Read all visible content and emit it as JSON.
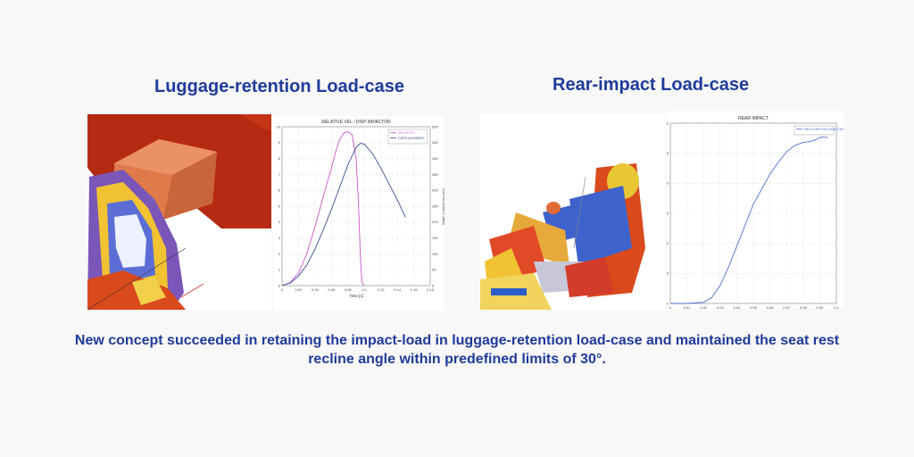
{
  "headings": {
    "left": "Luggage-retention Load-case",
    "right": "Rear-impact Load-case"
  },
  "caption": "New concept succeeded in retaining the impact-load in luggage-retention load-case and maintained the seat rest recline angle within predefined limits of 30°.",
  "colors": {
    "heading": "#1f3a9a",
    "velocity": "#cc55c8",
    "displacement": "#3a4e96",
    "recliner": "#4f6fd0",
    "box": "#e07a4a",
    "wall": "#b52a12"
  },
  "chart_data": [
    {
      "type": "line",
      "title": "RELATIVE VEL / DISP IMPACTOR",
      "xlabel": "Time [s]",
      "ylabel": "VELOCITY [m/s]",
      "y2label": "DISPLACEMENT [mm]",
      "xlim": [
        0,
        0.18
      ],
      "ylim": [
        0,
        10
      ],
      "y2lim": [
        0,
        500
      ],
      "xticks": [
        "0",
        "0.02",
        "0.04",
        "0.06",
        "0.08",
        "0.1",
        "0.12",
        "0.14",
        "0.16",
        "0.18"
      ],
      "yticks": [
        "0",
        "1",
        "2",
        "3",
        "4",
        "5",
        "6",
        "7",
        "8",
        "9",
        "10"
      ],
      "y2ticks": [
        "0",
        "50",
        "100",
        "150",
        "200",
        "250",
        "300",
        "350",
        "400",
        "450",
        "500"
      ],
      "legend": "top-right",
      "grid": true,
      "series": [
        {
          "name": "VELOCITY",
          "axis": "left",
          "x": [
            0,
            0.01,
            0.02,
            0.03,
            0.04,
            0.05,
            0.06,
            0.065,
            0.07,
            0.075,
            0.08,
            0.085,
            0.09,
            0.093,
            0.095,
            0.097,
            0.1
          ],
          "values": [
            0,
            0.2,
            0.8,
            2.0,
            3.7,
            5.6,
            7.4,
            8.4,
            9.2,
            9.6,
            9.7,
            9.5,
            8.0,
            5.0,
            2.0,
            0.2,
            0
          ]
        },
        {
          "name": "DISPLACEMENT",
          "axis": "right",
          "x": [
            0,
            0.01,
            0.02,
            0.03,
            0.04,
            0.05,
            0.06,
            0.07,
            0.08,
            0.09,
            0.095,
            0.1,
            0.11,
            0.12,
            0.13,
            0.14,
            0.15
          ],
          "values": [
            0,
            8,
            30,
            65,
            115,
            175,
            240,
            310,
            380,
            435,
            448,
            445,
            415,
            370,
            320,
            270,
            215
          ]
        }
      ]
    },
    {
      "type": "line",
      "title": "REAR IMPACT",
      "xlabel": "Time [s]",
      "ylabel": "RECLINER INCLINATION [°]",
      "xlim": [
        0,
        0.1
      ],
      "ylim": [
        0,
        30
      ],
      "xticks": [
        "0",
        "0.01",
        "0.02",
        "0.03",
        "0.04",
        "0.05",
        "0.06",
        "0.07",
        "0.08",
        "0.09",
        "0.1"
      ],
      "yticks": [
        "0",
        "5",
        "10",
        "15",
        "20",
        "25",
        "30"
      ],
      "legend": "top-right",
      "grid": true,
      "series": [
        {
          "name": "RECLINER INCLINATION [°]",
          "x": [
            0,
            0.01,
            0.02,
            0.025,
            0.03,
            0.035,
            0.04,
            0.045,
            0.05,
            0.055,
            0.06,
            0.065,
            0.07,
            0.075,
            0.08,
            0.085,
            0.088,
            0.09,
            0.092,
            0.095
          ],
          "values": [
            0,
            0,
            0.2,
            1.0,
            3.0,
            6.0,
            9.5,
            13.0,
            16.5,
            19.0,
            21.5,
            23.5,
            25.2,
            26.3,
            26.8,
            27.0,
            27.3,
            27.6,
            27.7,
            27.6
          ]
        }
      ]
    }
  ]
}
